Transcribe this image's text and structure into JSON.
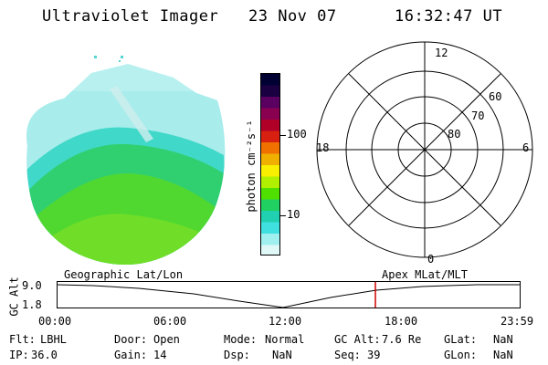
{
  "header": {
    "title": "Ultraviolet Imager",
    "date": "23 Nov 07",
    "time": "16:32:47 UT"
  },
  "colorbar": {
    "unit_label": "photon cm⁻²s⁻¹",
    "ticks": [
      "100",
      "10"
    ],
    "colors": [
      "#000033",
      "#1a0040",
      "#5a0060",
      "#8a0050",
      "#b00028",
      "#d82010",
      "#f07000",
      "#f0b000",
      "#f8f000",
      "#b0f000",
      "#50e000",
      "#20d060",
      "#20d0b0",
      "#40e0e0",
      "#a0f0f0",
      "#e0f8f8"
    ]
  },
  "polar_plot": {
    "mlt_labels": [
      "12",
      "18",
      "6",
      "0"
    ],
    "mlat_labels": [
      "60",
      "70",
      "80"
    ]
  },
  "timeline": {
    "left_title": "Geographic Lat/Lon",
    "right_title": "Apex MLat/MLT",
    "axis_label": "GC Alt",
    "y_ticks": [
      "9.0",
      "1.8"
    ],
    "x_ticks": [
      "00:00",
      "06:00",
      "12:00",
      "18:00",
      "23:59"
    ],
    "marker_color": "#cc0000"
  },
  "status": {
    "row1": [
      {
        "label": "Flt:",
        "value": "LBHL"
      },
      {
        "label": "Door:",
        "value": "Open"
      },
      {
        "label": "Mode:",
        "value": "Normal"
      },
      {
        "label": "GC Alt:",
        "value": "7.6 Re"
      },
      {
        "label": "GLat:",
        "value": "NaN"
      }
    ],
    "row2": [
      {
        "label": "IP:",
        "value": "36.0"
      },
      {
        "label": "Gain:",
        "value": "14"
      },
      {
        "label": "Dsp:",
        "value": "NaN"
      },
      {
        "label": "Seq:",
        "value": "39"
      },
      {
        "label": "GLon:",
        "value": "NaN"
      }
    ]
  }
}
